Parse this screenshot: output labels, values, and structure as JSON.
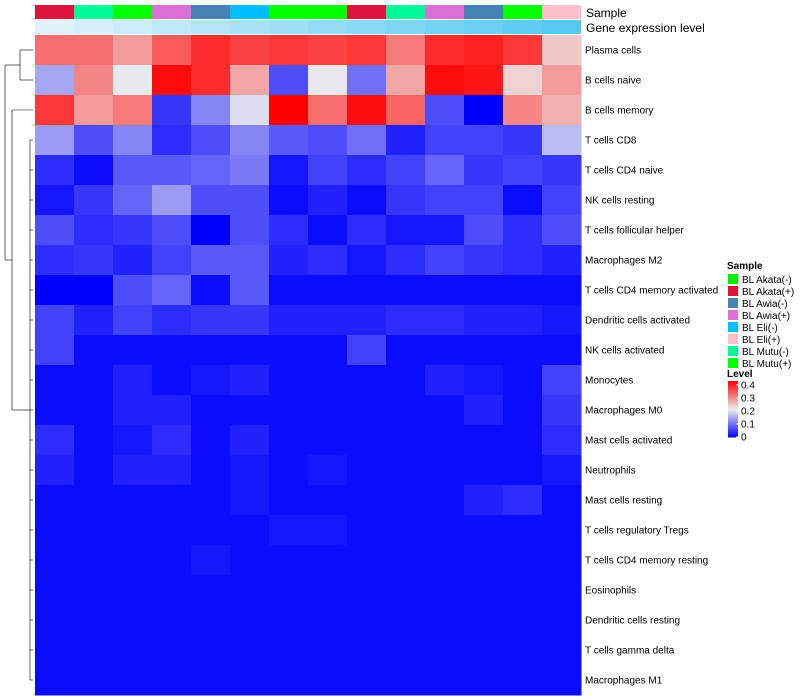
{
  "chart_data": {
    "type": "heatmap",
    "annotation_titles": [
      "Sample",
      "Gene expression level"
    ],
    "rows": [
      "Plasma cells",
      "B cells naive",
      "B cells memory",
      "T cells CD8",
      "T cells CD4 naive",
      "NK cells resting",
      "T cells follicular helper",
      "Macrophages M2",
      "T cells CD4 memory activated",
      "Dendritic cells activated",
      "NK cells activated",
      "Monocytes",
      "Macrophages M0",
      "Mast cells activated",
      "Neutrophils",
      "Mast cells resting",
      "T cells regulatory  Tregs",
      "T cells CD4 memory resting",
      "Eosinophils",
      "Dendritic cells resting",
      "T cells gamma delta",
      "Macrophages M1"
    ],
    "column_samples": [
      "BL Akata(+)",
      "BL Mutu(-)",
      "BL Mutu(+)",
      "BL Awia(+)",
      "BL Awia(-)",
      "BL Eli(-)",
      "BL Mutu(+)",
      "BL Mutu(+)",
      "BL Akata(+)",
      "BL Mutu(-)",
      "BL Awia(+)",
      "BL Awia(-)",
      "BL Mutu(+)",
      "BL Eli(+)"
    ],
    "gene_expression_level": [
      0.02,
      0.05,
      0.08,
      0.11,
      0.15,
      0.18,
      0.21,
      0.24,
      0.27,
      0.3,
      0.33,
      0.36,
      0.39,
      0.42
    ],
    "values": [
      [
        0.33,
        0.33,
        0.29,
        0.35,
        0.39,
        0.37,
        0.38,
        0.37,
        0.38,
        0.32,
        0.39,
        0.4,
        0.38,
        0.25
      ],
      [
        0.15,
        0.31,
        0.21,
        0.42,
        0.39,
        0.28,
        0.07,
        0.21,
        0.1,
        0.28,
        0.42,
        0.41,
        0.24,
        0.29
      ],
      [
        0.38,
        0.29,
        0.32,
        0.05,
        0.12,
        0.2,
        0.43,
        0.33,
        0.42,
        0.34,
        0.07,
        0.0,
        0.31,
        0.27
      ],
      [
        0.14,
        0.07,
        0.12,
        0.04,
        0.07,
        0.12,
        0.08,
        0.07,
        0.1,
        0.03,
        0.06,
        0.06,
        0.05,
        0.17
      ],
      [
        0.04,
        0.01,
        0.08,
        0.08,
        0.09,
        0.11,
        0.02,
        0.06,
        0.04,
        0.06,
        0.09,
        0.05,
        0.06,
        0.05
      ],
      [
        0.02,
        0.05,
        0.09,
        0.14,
        0.07,
        0.07,
        0.01,
        0.03,
        0.01,
        0.05,
        0.06,
        0.06,
        0.01,
        0.06
      ],
      [
        0.07,
        0.04,
        0.05,
        0.07,
        0.0,
        0.07,
        0.04,
        0.01,
        0.04,
        0.02,
        0.02,
        0.07,
        0.04,
        0.07
      ],
      [
        0.04,
        0.05,
        0.03,
        0.06,
        0.08,
        0.08,
        0.03,
        0.04,
        0.02,
        0.04,
        0.06,
        0.05,
        0.04,
        0.03
      ],
      [
        0.0,
        0.0,
        0.07,
        0.09,
        0.01,
        0.08,
        0.01,
        0.01,
        0.01,
        0.01,
        0.01,
        0.01,
        0.01,
        0.01
      ],
      [
        0.06,
        0.03,
        0.06,
        0.04,
        0.05,
        0.05,
        0.03,
        0.03,
        0.03,
        0.04,
        0.04,
        0.03,
        0.03,
        0.02
      ],
      [
        0.06,
        0.01,
        0.01,
        0.01,
        0.01,
        0.01,
        0.01,
        0.01,
        0.06,
        0.01,
        0.01,
        0.01,
        0.01,
        0.01
      ],
      [
        0.01,
        0.01,
        0.03,
        0.01,
        0.02,
        0.03,
        0.01,
        0.01,
        0.01,
        0.01,
        0.03,
        0.02,
        0.01,
        0.06
      ],
      [
        0.01,
        0.01,
        0.03,
        0.03,
        0.01,
        0.01,
        0.01,
        0.01,
        0.01,
        0.01,
        0.01,
        0.03,
        0.01,
        0.05
      ],
      [
        0.04,
        0.01,
        0.02,
        0.04,
        0.01,
        0.03,
        0.01,
        0.01,
        0.01,
        0.01,
        0.01,
        0.01,
        0.01,
        0.04
      ],
      [
        0.03,
        0.01,
        0.03,
        0.03,
        0.01,
        0.02,
        0.01,
        0.02,
        0.01,
        0.01,
        0.01,
        0.01,
        0.01,
        0.02
      ],
      [
        0.01,
        0.01,
        0.01,
        0.01,
        0.01,
        0.02,
        0.01,
        0.01,
        0.01,
        0.01,
        0.01,
        0.03,
        0.04,
        0.01
      ],
      [
        0.01,
        0.01,
        0.01,
        0.01,
        0.01,
        0.01,
        0.02,
        0.02,
        0.01,
        0.01,
        0.01,
        0.01,
        0.01,
        0.01
      ],
      [
        0.01,
        0.01,
        0.01,
        0.01,
        0.02,
        0.01,
        0.01,
        0.01,
        0.01,
        0.01,
        0.01,
        0.01,
        0.01,
        0.01
      ],
      [
        0.01,
        0.01,
        0.01,
        0.01,
        0.01,
        0.01,
        0.01,
        0.01,
        0.01,
        0.01,
        0.01,
        0.01,
        0.01,
        0.01
      ],
      [
        0.01,
        0.01,
        0.01,
        0.01,
        0.01,
        0.01,
        0.01,
        0.01,
        0.01,
        0.01,
        0.01,
        0.01,
        0.01,
        0.01
      ],
      [
        0.01,
        0.01,
        0.01,
        0.01,
        0.01,
        0.01,
        0.01,
        0.01,
        0.01,
        0.01,
        0.01,
        0.01,
        0.01,
        0.01
      ],
      [
        0.01,
        0.01,
        0.01,
        0.01,
        0.01,
        0.01,
        0.01,
        0.01,
        0.01,
        0.01,
        0.01,
        0.01,
        0.01,
        0.01
      ]
    ],
    "row_dendrogram": true,
    "color_scale": {
      "min": 0,
      "max": 0.43,
      "stops": [
        {
          "value": 0,
          "color": "#0000ff"
        },
        {
          "value": 0.215,
          "color": "#eeeeee"
        },
        {
          "value": 0.43,
          "color": "#ff0000"
        }
      ]
    },
    "gene_expression_colors": [
      "#e0f3fa",
      "#56c9f0"
    ],
    "legend": {
      "sample_title": "Sample",
      "sample_entries": [
        {
          "label": "BL Akata(-)",
          "color": "#00ee00"
        },
        {
          "label": "BL Akata(+)",
          "color": "#dc143c"
        },
        {
          "label": "BL Awia(-)",
          "color": "#4682b4"
        },
        {
          "label": "BL Awia(+)",
          "color": "#da70d6"
        },
        {
          "label": "BL Eli(-)",
          "color": "#00bfff"
        },
        {
          "label": "BL Eli(+)",
          "color": "#ffc0cb"
        },
        {
          "label": "BL Mutu(-)",
          "color": "#00fa9a"
        },
        {
          "label": "BL Mutu(+)",
          "color": "#00ff00"
        }
      ],
      "level_title": "Level",
      "level_ticks": [
        "0.4",
        "0.3",
        "0.2",
        "0.1",
        "0"
      ],
      "level_tick_values": [
        0.4,
        0.3,
        0.2,
        0.1,
        0
      ],
      "placement": "right"
    }
  }
}
